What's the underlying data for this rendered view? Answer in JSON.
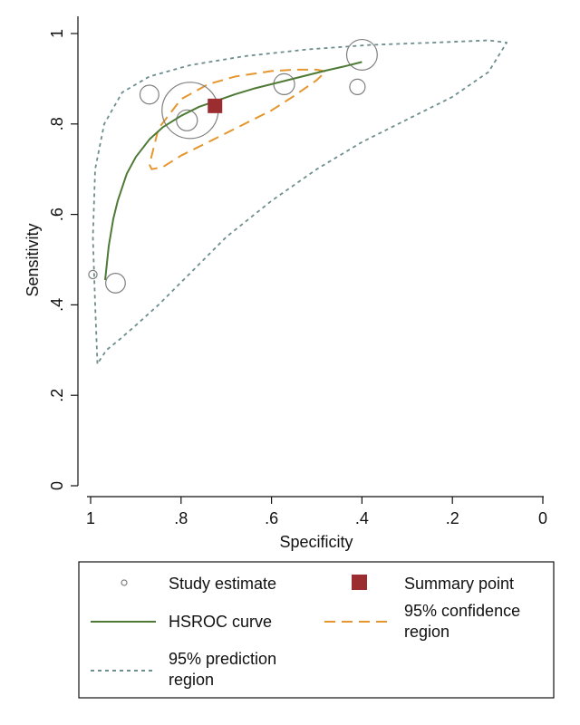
{
  "chart_data": {
    "type": "scatter",
    "xlabel": "Specificity",
    "ylabel": "Sensitivity",
    "xlim": [
      1,
      0
    ],
    "ylim": [
      0,
      1
    ],
    "x_ticks": [
      {
        "value": 1,
        "label": "1"
      },
      {
        "value": 0.8,
        "label": ".8"
      },
      {
        "value": 0.6,
        "label": ".6"
      },
      {
        "value": 0.4,
        "label": ".4"
      },
      {
        "value": 0.2,
        "label": ".2"
      },
      {
        "value": 0,
        "label": "0"
      }
    ],
    "y_ticks": [
      {
        "value": 0,
        "label": "0"
      },
      {
        "value": 0.2,
        "label": ".2"
      },
      {
        "value": 0.4,
        "label": ".4"
      },
      {
        "value": 0.6,
        "label": ".6"
      },
      {
        "value": 0.8,
        "label": ".8"
      },
      {
        "value": 1,
        "label": "1"
      }
    ],
    "grid": false,
    "legend_position": "bottom",
    "colors": {
      "study": "#7f7f7f",
      "summary": "#9b2d30",
      "hsroc": "#4e7a36",
      "confidence": "#e5962e",
      "prediction": "#6e8e8e"
    },
    "study_estimates": [
      {
        "specificity": 0.995,
        "sensitivity": 0.467,
        "weight": 0.02
      },
      {
        "specificity": 0.945,
        "sensitivity": 0.448,
        "weight": 0.5
      },
      {
        "specificity": 0.87,
        "sensitivity": 0.865,
        "weight": 0.45
      },
      {
        "specificity": 0.78,
        "sensitivity": 0.83,
        "weight": 6.5
      },
      {
        "specificity": 0.787,
        "sensitivity": 0.808,
        "weight": 0.6
      },
      {
        "specificity": 0.572,
        "sensitivity": 0.888,
        "weight": 0.6
      },
      {
        "specificity": 0.41,
        "sensitivity": 0.882,
        "weight": 0.25
      },
      {
        "specificity": 0.4,
        "sensitivity": 0.953,
        "weight": 1.6
      }
    ],
    "summary_point": {
      "specificity": 0.725,
      "sensitivity": 0.84
    },
    "hsroc_curve": {
      "specificity": [
        0.968,
        0.96,
        0.95,
        0.94,
        0.92,
        0.9,
        0.87,
        0.84,
        0.8,
        0.76,
        0.72,
        0.68,
        0.64,
        0.6,
        0.56,
        0.52,
        0.48,
        0.44,
        0.4
      ],
      "sensitivity": [
        0.455,
        0.53,
        0.59,
        0.63,
        0.69,
        0.727,
        0.766,
        0.793,
        0.818,
        0.838,
        0.852,
        0.866,
        0.878,
        0.888,
        0.898,
        0.908,
        0.918,
        0.927,
        0.937
      ]
    },
    "confidence_region": {
      "specificity": [
        0.87,
        0.865,
        0.84,
        0.8,
        0.75,
        0.68,
        0.6,
        0.55,
        0.5,
        0.48,
        0.5,
        0.55,
        0.6,
        0.68,
        0.74,
        0.8,
        0.85,
        0.87
      ],
      "sensitivity": [
        0.71,
        0.7,
        0.705,
        0.73,
        0.755,
        0.79,
        0.83,
        0.862,
        0.897,
        0.916,
        0.92,
        0.92,
        0.917,
        0.905,
        0.888,
        0.855,
        0.79,
        0.71
      ]
    },
    "prediction_region": {
      "specificity": [
        0.985,
        0.99,
        0.995,
        0.99,
        0.97,
        0.93,
        0.87,
        0.78,
        0.66,
        0.52,
        0.38,
        0.24,
        0.12,
        0.08,
        0.12,
        0.2,
        0.3,
        0.4,
        0.5,
        0.6,
        0.7,
        0.78,
        0.85,
        0.9,
        0.94,
        0.965,
        0.975,
        0.985
      ],
      "sensitivity": [
        0.27,
        0.4,
        0.55,
        0.7,
        0.8,
        0.87,
        0.905,
        0.93,
        0.95,
        0.965,
        0.975,
        0.98,
        0.985,
        0.98,
        0.915,
        0.86,
        0.81,
        0.76,
        0.7,
        0.63,
        0.55,
        0.47,
        0.4,
        0.355,
        0.32,
        0.3,
        0.285,
        0.27
      ]
    },
    "legend": {
      "study_label": "Study estimate",
      "summary_label": "Summary point",
      "hsroc_label": "HSROC curve",
      "confidence_line1": "95% confidence",
      "confidence_line2": "region",
      "prediction_line1": "95% prediction",
      "prediction_line2": "region"
    }
  }
}
